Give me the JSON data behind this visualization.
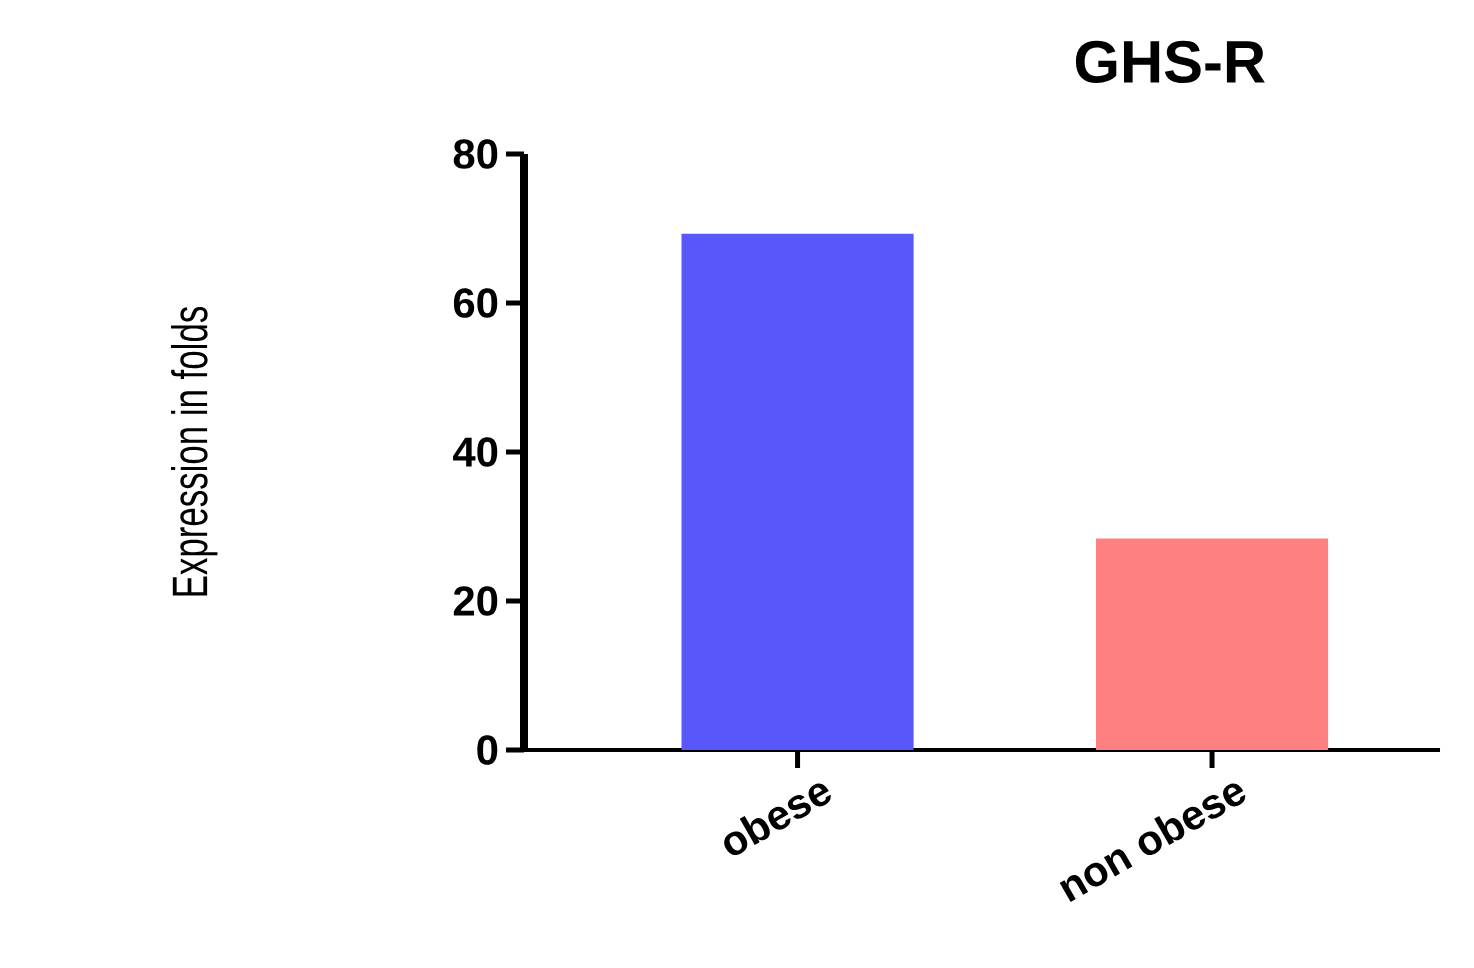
{
  "chart_data": {
    "type": "bar",
    "title": "GHS-R",
    "ylabel": "Expression in folds",
    "categories": [
      "obese",
      "non obese"
    ],
    "values": [
      69.3,
      28.4
    ],
    "colors": [
      "#5757fa",
      "#ff8080"
    ],
    "ylim": [
      0,
      80
    ],
    "yticks": [
      0,
      20,
      40,
      60,
      80
    ],
    "grid": false
  }
}
